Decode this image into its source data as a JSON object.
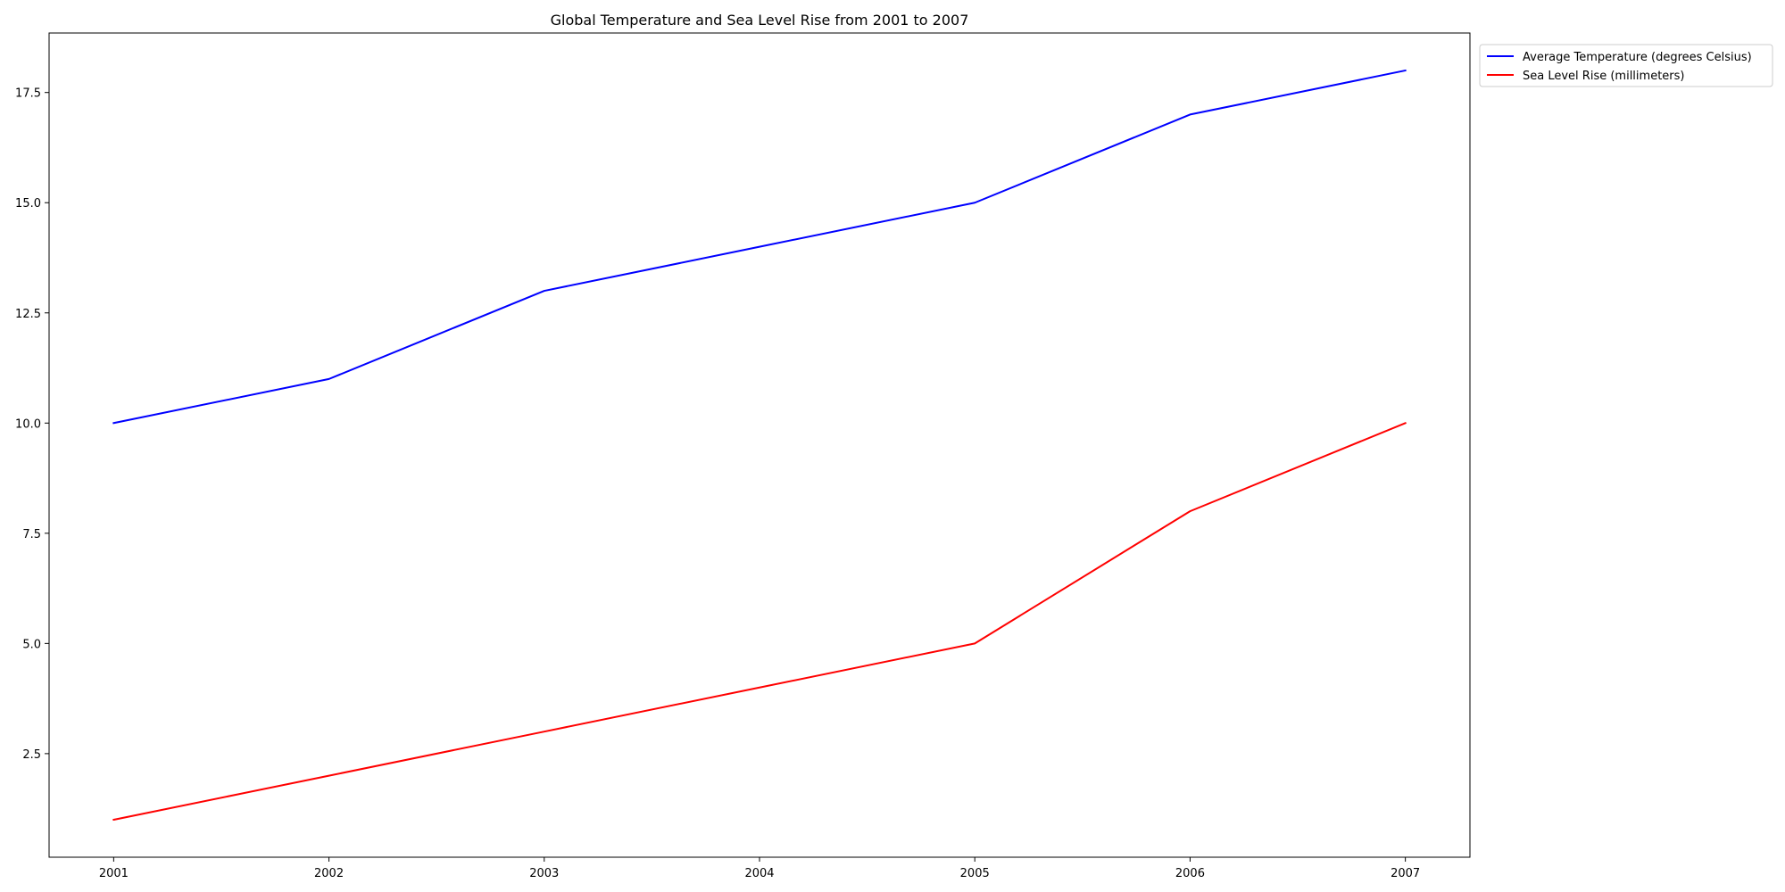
{
  "chart_data": {
    "type": "line",
    "title": "Global Temperature and Sea Level Rise from 2001 to 2007",
    "xlabel": "",
    "ylabel": "",
    "x": [
      2001,
      2002,
      2003,
      2004,
      2005,
      2006,
      2007
    ],
    "x_tick_labels": [
      "2001",
      "2002",
      "2003",
      "2004",
      "2005",
      "2006",
      "2007"
    ],
    "y_ticks": [
      2.5,
      5.0,
      7.5,
      10.0,
      12.5,
      15.0,
      17.5
    ],
    "y_tick_labels": [
      "2.5",
      "5.0",
      "7.5",
      "10.0",
      "12.5",
      "15.0",
      "17.5"
    ],
    "xlim": [
      2000.7,
      2007.3
    ],
    "ylim": [
      0.15,
      18.85
    ],
    "grid": false,
    "legend_position": "outside-top-right",
    "series": [
      {
        "name": "Average Temperature (degrees Celsius)",
        "color": "#0000ff",
        "values": [
          10,
          11,
          13,
          14,
          15,
          17,
          18
        ]
      },
      {
        "name": "Sea Level Rise (millimeters)",
        "color": "#ff0000",
        "values": [
          1,
          2,
          3,
          4,
          5,
          8,
          10
        ]
      }
    ]
  }
}
